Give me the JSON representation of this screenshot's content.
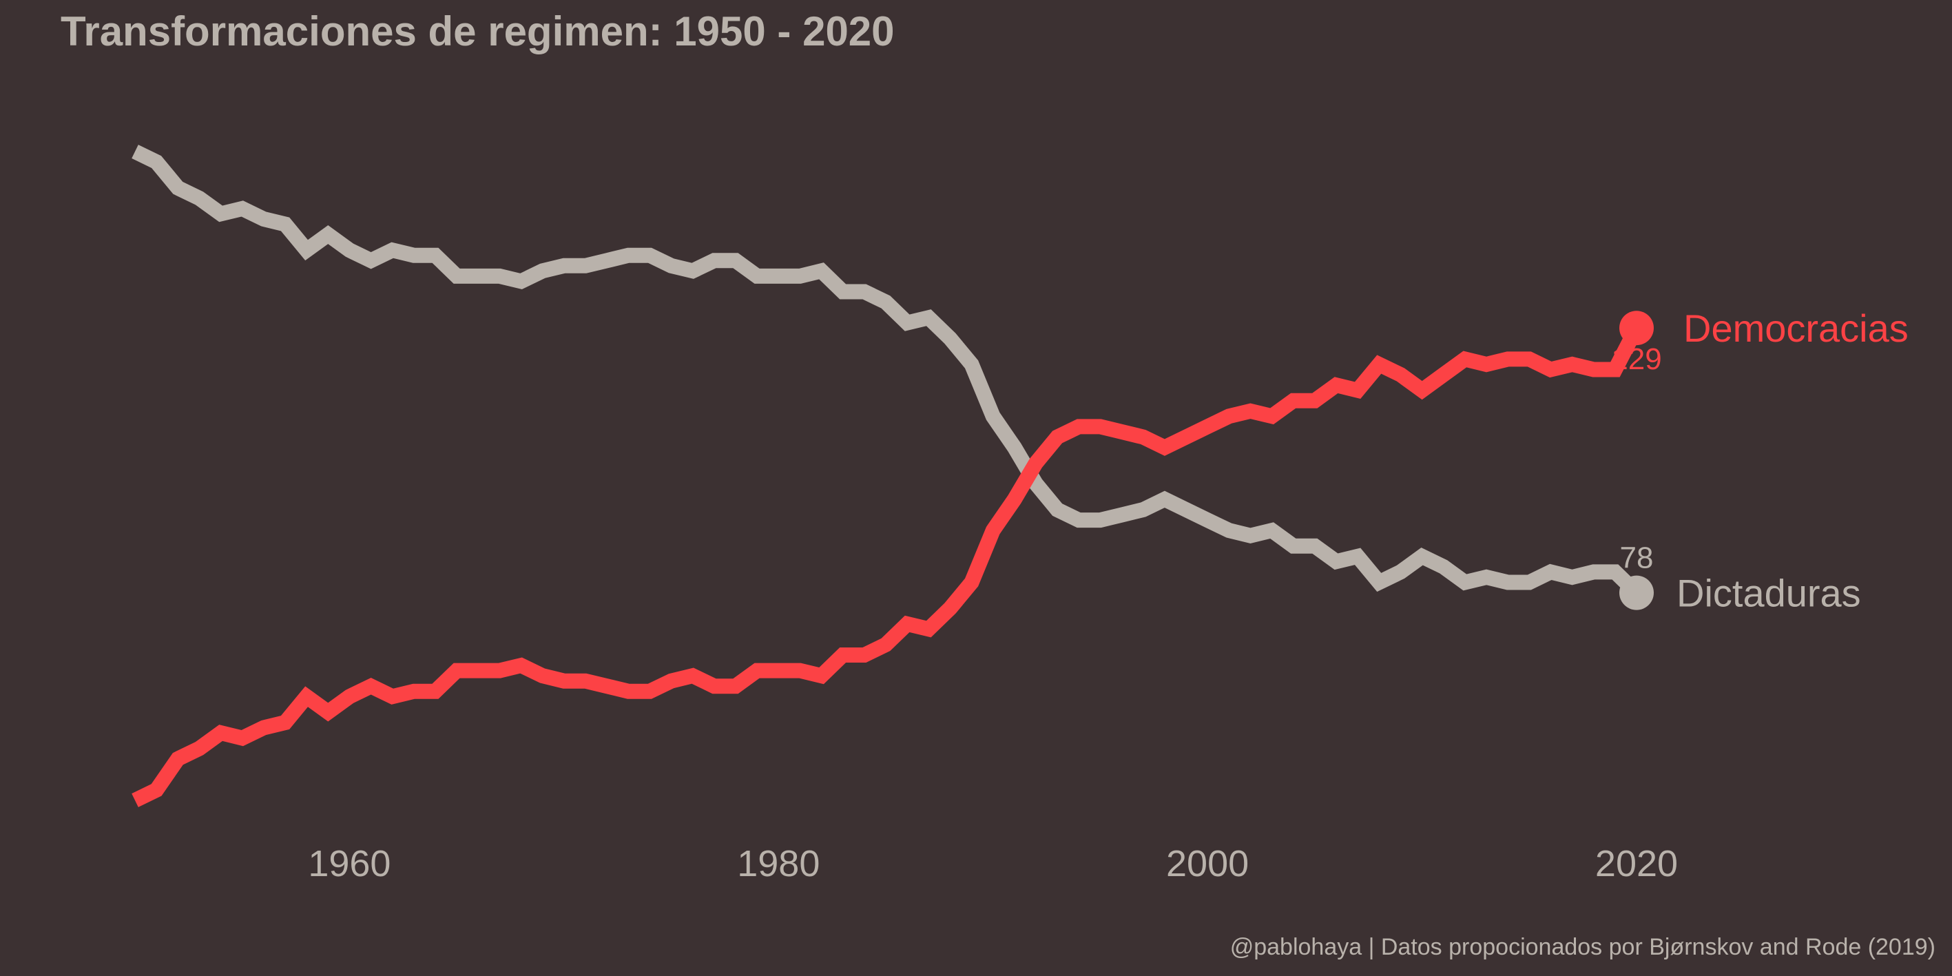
{
  "colors": {
    "background": "#3c3132",
    "text": "#b9b2ab",
    "dictaduras": "#b9b2ab",
    "democracias": "#fc4245"
  },
  "chart_data": {
    "type": "line",
    "title": "Transformaciones de regimen: 1950 - 2020",
    "caption": "@pablohaya | Datos propocionados por Bjørnskov and Rode (2019)",
    "xlabel": "",
    "ylabel": "",
    "xlim": [
      1945,
      2034
    ],
    "ylim": [
      25,
      185
    ],
    "x_ticks": [
      1960,
      1980,
      2000,
      2020
    ],
    "grid": false,
    "legend": "direct labels at line ends (right)",
    "x": [
      1950,
      1951,
      1952,
      1953,
      1954,
      1955,
      1956,
      1957,
      1958,
      1959,
      1960,
      1961,
      1962,
      1963,
      1964,
      1965,
      1966,
      1967,
      1968,
      1969,
      1970,
      1971,
      1972,
      1973,
      1974,
      1975,
      1976,
      1977,
      1978,
      1979,
      1980,
      1981,
      1982,
      1983,
      1984,
      1985,
      1986,
      1987,
      1988,
      1989,
      1990,
      1991,
      1992,
      1993,
      1994,
      1995,
      1996,
      1997,
      1998,
      1999,
      2000,
      2001,
      2002,
      2003,
      2004,
      2005,
      2006,
      2007,
      2008,
      2009,
      2010,
      2011,
      2012,
      2013,
      2014,
      2015,
      2016,
      2017,
      2018,
      2019,
      2020
    ],
    "series": [
      {
        "key": "dictaduras",
        "name": "Dictaduras",
        "end_label": "78",
        "values": [
          163,
          161,
          156,
          154,
          151,
          152,
          150,
          149,
          144,
          147,
          144,
          142,
          144,
          143,
          143,
          139,
          139,
          139,
          138,
          140,
          141,
          141,
          142,
          143,
          143,
          141,
          140,
          142,
          142,
          139,
          139,
          139,
          140,
          136,
          136,
          134,
          130,
          131,
          127,
          122,
          112,
          106,
          99,
          94,
          92,
          92,
          93,
          94,
          96,
          94,
          92,
          90,
          89,
          90,
          87,
          87,
          84,
          85,
          80,
          82,
          85,
          83,
          80,
          81,
          80,
          80,
          82,
          81,
          82,
          82,
          78
        ]
      },
      {
        "key": "democracias",
        "name": "Democracias",
        "end_label": "129",
        "values": [
          38,
          40,
          46,
          48,
          51,
          50,
          52,
          53,
          58,
          55,
          58,
          60,
          58,
          59,
          59,
          63,
          63,
          63,
          64,
          62,
          61,
          61,
          60,
          59,
          59,
          61,
          62,
          60,
          60,
          63,
          63,
          63,
          62,
          66,
          66,
          68,
          72,
          71,
          75,
          80,
          90,
          96,
          103,
          108,
          110,
          110,
          109,
          108,
          106,
          108,
          110,
          112,
          113,
          112,
          115,
          115,
          118,
          117,
          122,
          120,
          117,
          120,
          123,
          122,
          123,
          123,
          121,
          122,
          121,
          121,
          129
        ]
      }
    ]
  }
}
